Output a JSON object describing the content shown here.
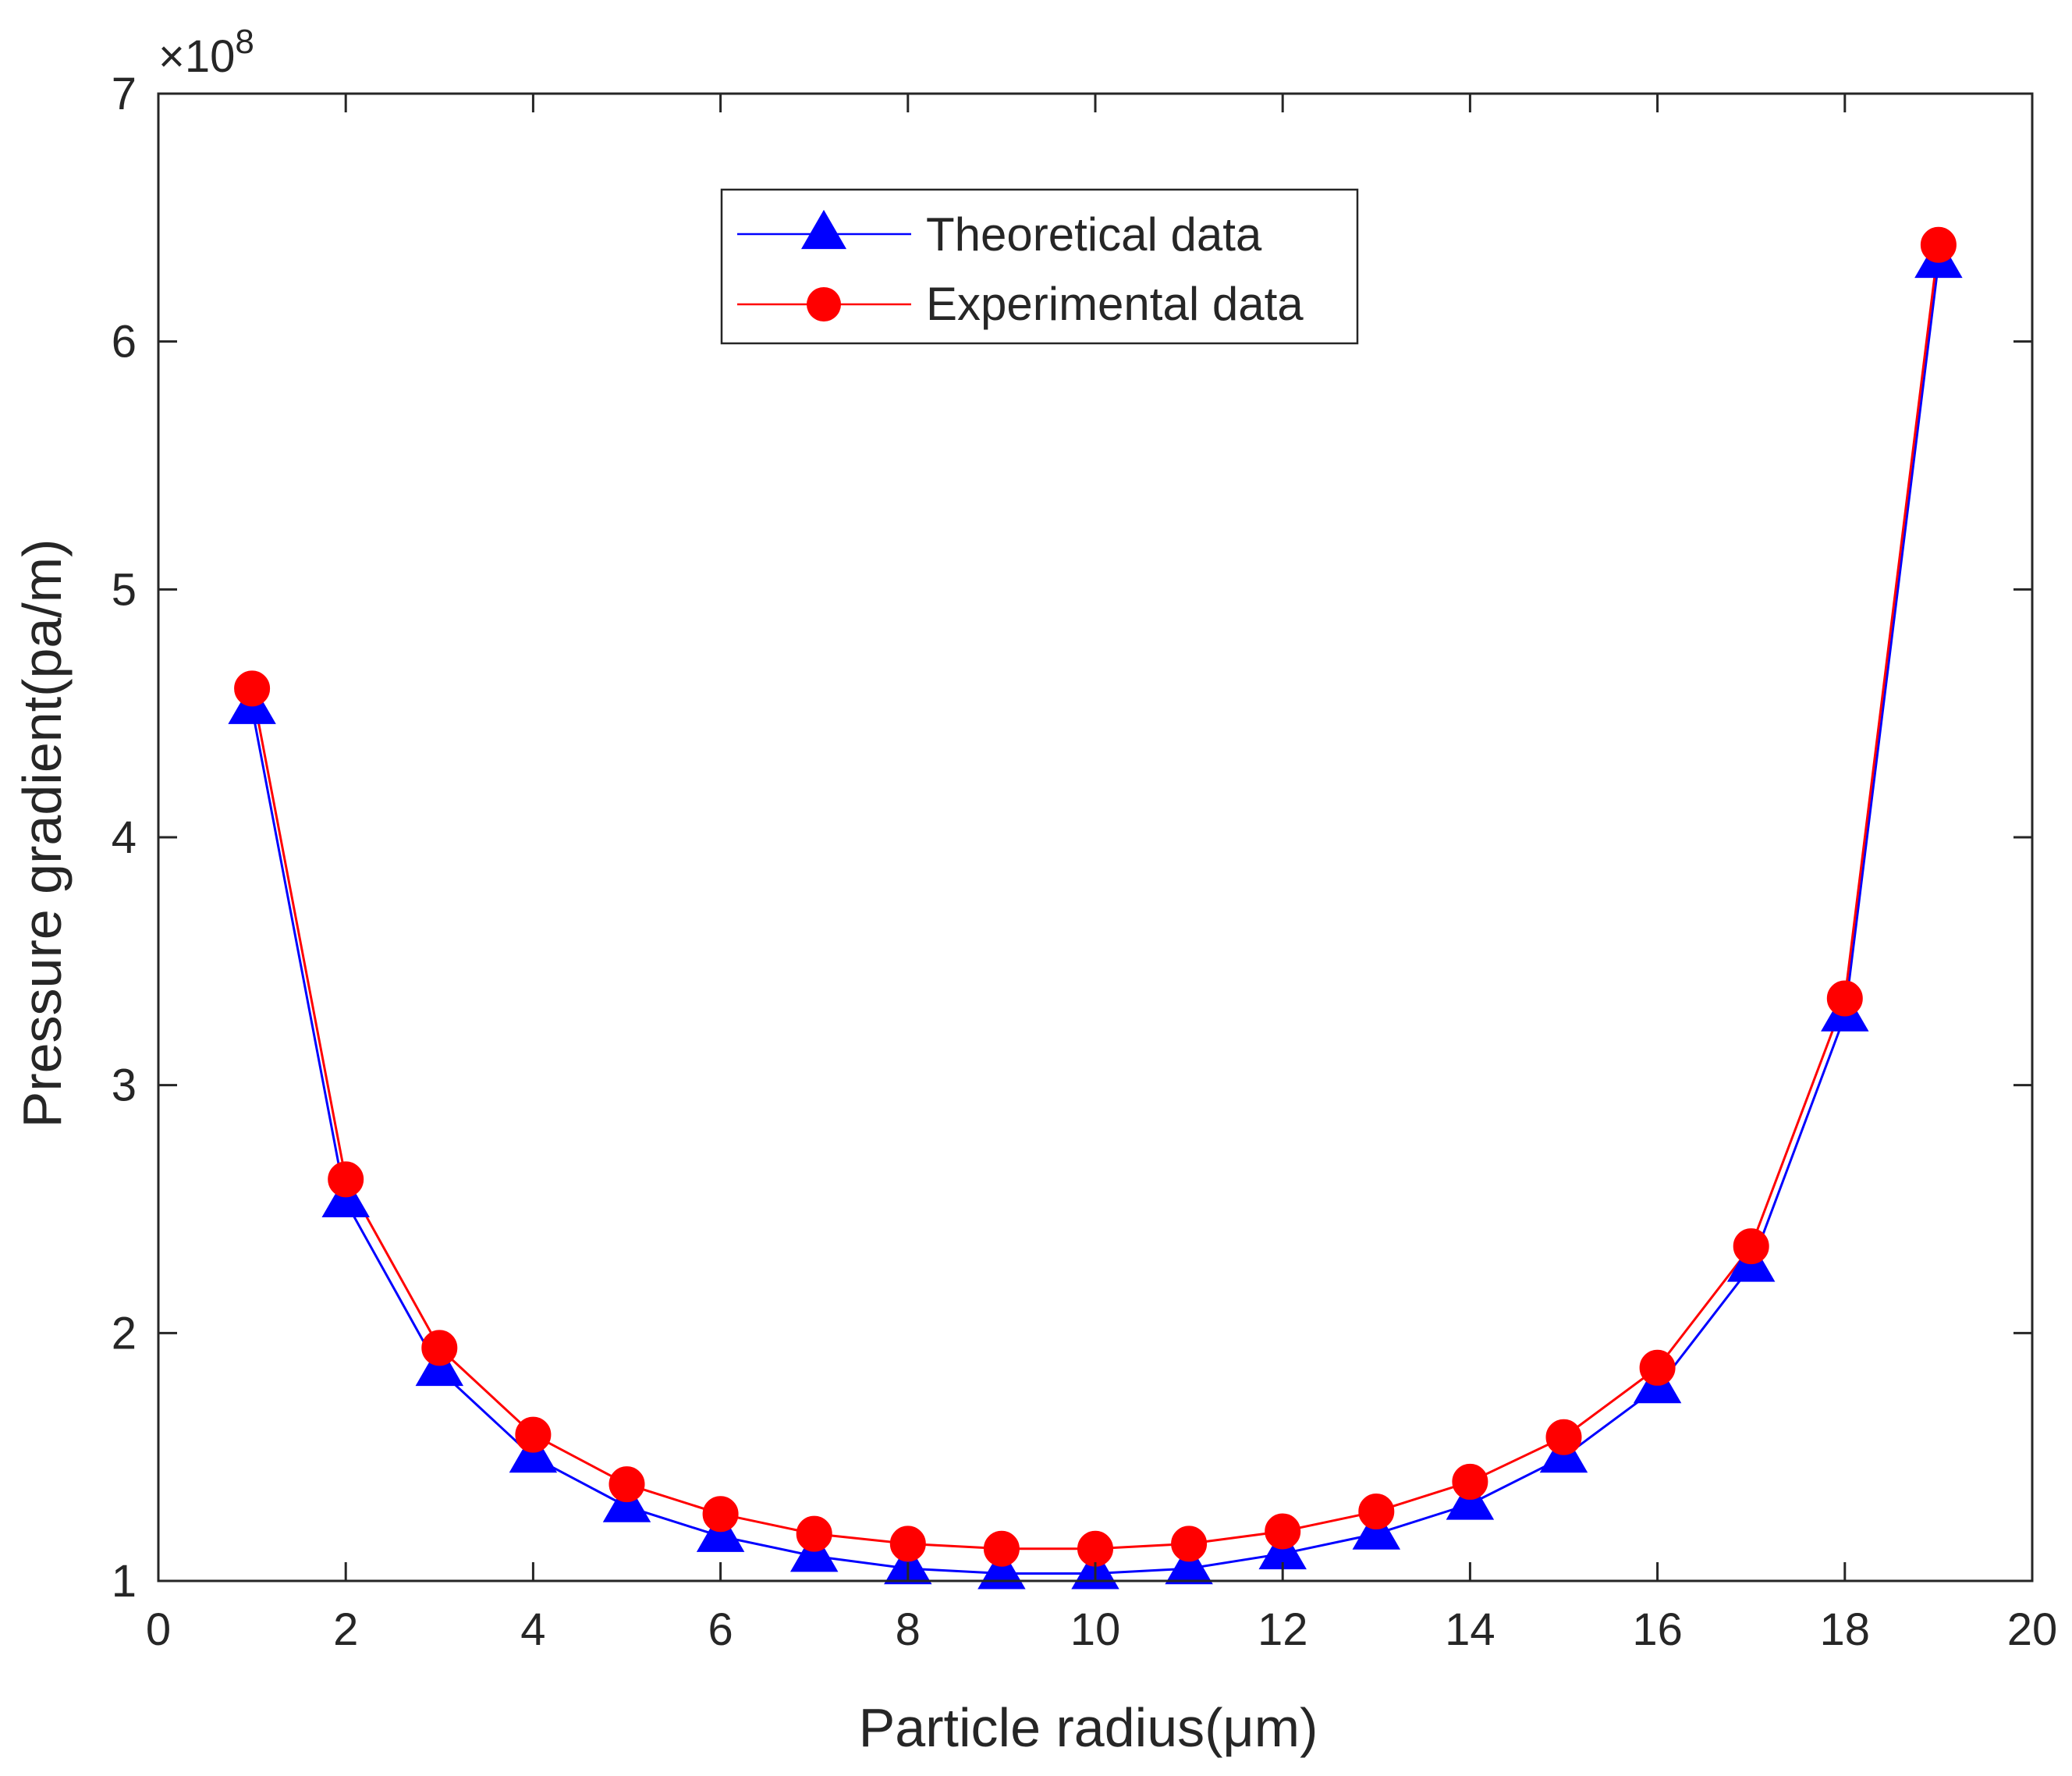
{
  "colors": {
    "axis": "#262626",
    "theoretical": "#0000ff",
    "experimental": "#ff0000"
  },
  "chart_data": {
    "type": "line",
    "title": "",
    "xlabel": "Particle radius(μm)",
    "ylabel": "Pressure gradient(pa/m)",
    "y_exponent_label": "×10",
    "y_exponent_power": "8",
    "xlim": [
      0,
      20
    ],
    "ylim": [
      1,
      7
    ],
    "x_ticks": [
      0,
      2,
      4,
      6,
      8,
      10,
      12,
      14,
      16,
      18,
      20
    ],
    "y_ticks": [
      1,
      2,
      3,
      4,
      5,
      6,
      7
    ],
    "grid": false,
    "legend_position": "top-center",
    "x": [
      1,
      2,
      3,
      4,
      5,
      6,
      7,
      8,
      9,
      10,
      11,
      12,
      13,
      14,
      15,
      16,
      17,
      18,
      19
    ],
    "series": [
      {
        "name": "Theoretical data",
        "marker": "triangle",
        "color": "#0000ff",
        "values": [
          4.52,
          2.53,
          1.85,
          1.5,
          1.3,
          1.18,
          1.1,
          1.05,
          1.03,
          1.03,
          1.05,
          1.11,
          1.19,
          1.31,
          1.5,
          1.78,
          2.27,
          3.28,
          6.32
        ]
      },
      {
        "name": "Experimental data",
        "marker": "circle",
        "color": "#ff0000",
        "values": [
          4.6,
          2.62,
          1.94,
          1.59,
          1.39,
          1.27,
          1.19,
          1.15,
          1.13,
          1.13,
          1.15,
          1.2,
          1.28,
          1.4,
          1.58,
          1.86,
          2.35,
          3.35,
          6.39
        ]
      }
    ]
  }
}
